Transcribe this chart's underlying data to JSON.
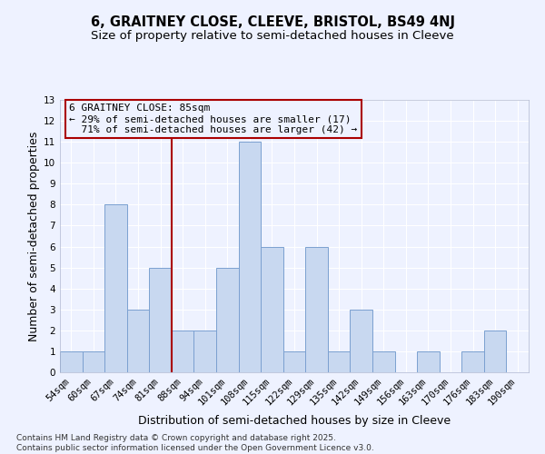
{
  "title": "6, GRAITNEY CLOSE, CLEEVE, BRISTOL, BS49 4NJ",
  "subtitle": "Size of property relative to semi-detached houses in Cleeve",
  "xlabel": "Distribution of semi-detached houses by size in Cleeve",
  "ylabel": "Number of semi-detached properties",
  "categories": [
    "54sqm",
    "60sqm",
    "67sqm",
    "74sqm",
    "81sqm",
    "88sqm",
    "94sqm",
    "101sqm",
    "108sqm",
    "115sqm",
    "122sqm",
    "129sqm",
    "135sqm",
    "142sqm",
    "149sqm",
    "156sqm",
    "163sqm",
    "170sqm",
    "176sqm",
    "183sqm",
    "190sqm"
  ],
  "values": [
    1,
    1,
    8,
    3,
    5,
    2,
    2,
    5,
    11,
    6,
    1,
    6,
    1,
    3,
    1,
    0,
    1,
    0,
    1,
    2,
    0
  ],
  "bar_color": "#c8d8f0",
  "bar_edge_color": "#7ba0d0",
  "property_label": "6 GRAITNEY CLOSE: 85sqm",
  "pct_smaller": 29,
  "pct_larger": 71,
  "n_smaller": 17,
  "n_larger": 42,
  "vline_x_index": 4.5,
  "ylim": [
    0,
    13
  ],
  "yticks": [
    0,
    1,
    2,
    3,
    4,
    5,
    6,
    7,
    8,
    9,
    10,
    11,
    12,
    13
  ],
  "background_color": "#eef2ff",
  "grid_color": "#ffffff",
  "annotation_box_color": "#aa0000",
  "footer": "Contains HM Land Registry data © Crown copyright and database right 2025.\nContains public sector information licensed under the Open Government Licence v3.0.",
  "title_fontsize": 10.5,
  "subtitle_fontsize": 9.5,
  "axis_label_fontsize": 9,
  "tick_fontsize": 7.5,
  "annot_fontsize": 8,
  "footer_fontsize": 6.5
}
